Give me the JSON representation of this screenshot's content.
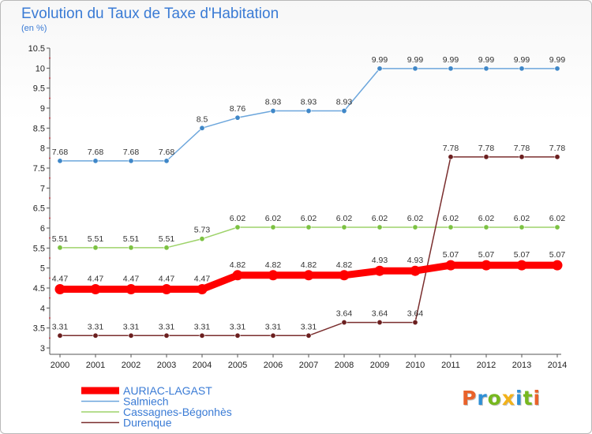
{
  "title": "Evolution du Taux de Taxe d'Habitation",
  "unit_label": "(en %)",
  "logo": {
    "text": "Proxiti",
    "colors": [
      "#e9622a",
      "#2e8fd6",
      "#77b81f",
      "#f2b21a",
      "#2e8fd6",
      "#77b81f",
      "#e9622a"
    ]
  },
  "chart_data": {
    "type": "line",
    "x": [
      "2000",
      "2001",
      "2002",
      "2003",
      "2004",
      "2005",
      "2006",
      "2007",
      "2008",
      "2009",
      "2010",
      "2011",
      "2012",
      "2013",
      "2014"
    ],
    "ylim": [
      3,
      10.5
    ],
    "yticks": [
      "3",
      "3.5",
      "4",
      "4.5",
      "5",
      "5.5",
      "6",
      "6.5",
      "7",
      "7.5",
      "8",
      "8.5",
      "9",
      "9.5",
      "10",
      "10.5"
    ],
    "grid": false,
    "legend_position": "bottom-left",
    "series": [
      {
        "name": "AURIAC-LAGAST",
        "color": "#ff0000",
        "thick": true,
        "values": [
          4.47,
          4.47,
          4.47,
          4.47,
          4.47,
          4.82,
          4.82,
          4.82,
          4.82,
          4.93,
          4.93,
          5.07,
          5.07,
          5.07,
          5.07
        ],
        "labels": [
          "4.47",
          "4.47",
          "4.47",
          "4.47",
          "4.47",
          "4.82",
          "4.82",
          "4.82",
          "4.82",
          "4.93",
          "4.93",
          "5.07",
          "5.07",
          "5.07",
          "5.07"
        ]
      },
      {
        "name": "Salmiech",
        "color": "#6ca6dc",
        "point_color": "#3f87c8",
        "values": [
          7.68,
          7.68,
          7.68,
          7.68,
          8.5,
          8.76,
          8.93,
          8.93,
          8.93,
          9.99,
          9.99,
          9.99,
          9.99,
          9.99,
          9.99
        ],
        "labels": [
          "7.68",
          "7.68",
          "7.68",
          "7.68",
          "8.5",
          "8.76",
          "8.93",
          "8.93",
          "8.93",
          "9.99",
          "9.99",
          "9.99",
          "9.99",
          "9.99",
          "9.99"
        ]
      },
      {
        "name": "Cassagnes-Bégonhès",
        "color": "#9ed36a",
        "point_color": "#7cc242",
        "values": [
          5.51,
          5.51,
          5.51,
          5.51,
          5.73,
          6.02,
          6.02,
          6.02,
          6.02,
          6.02,
          6.02,
          6.02,
          6.02,
          6.02,
          6.02
        ],
        "labels": [
          "5.51",
          "5.51",
          "5.51",
          "5.51",
          "5.73",
          "6.02",
          "6.02",
          "6.02",
          "6.02",
          "6.02",
          "6.02",
          "6.02",
          "6.02",
          "6.02",
          "6.02"
        ]
      },
      {
        "name": "Durenque",
        "color": "#7a2e2e",
        "point_color": "#6b1f1f",
        "values": [
          3.31,
          3.31,
          3.31,
          3.31,
          3.31,
          3.31,
          3.31,
          3.31,
          3.64,
          3.64,
          3.64,
          7.78,
          7.78,
          7.78,
          7.78
        ],
        "labels": [
          "3.31",
          "3.31",
          "3.31",
          "3.31",
          "3.31",
          "3.31",
          "3.31",
          "3.31",
          "3.64",
          "3.64",
          "3.64",
          "7.78",
          "7.78",
          "7.78",
          "7.78"
        ]
      }
    ]
  }
}
